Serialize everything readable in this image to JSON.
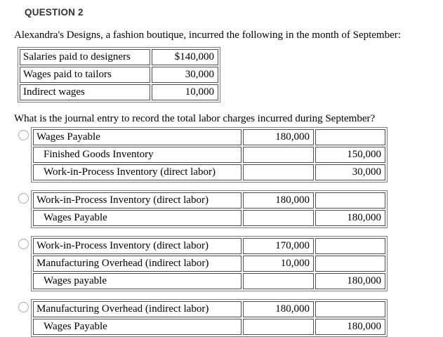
{
  "header": {
    "title": "QUESTION 2",
    "title_color": "#2f3337"
  },
  "intro": "Alexandra's Designs, a fashion boutique, incurred the following in the month of September:",
  "facts_table": {
    "rows": [
      {
        "label": "Salaries paid to designers",
        "amount": "$140,000"
      },
      {
        "label": "Wages paid to tailors",
        "amount": "30,000"
      },
      {
        "label": "Indirect wages",
        "amount": "10,000"
      }
    ]
  },
  "question": "What is the journal entry to record the total labor charges incurred during September?",
  "options": [
    {
      "selected": false,
      "rows": [
        {
          "account": "Wages Payable",
          "debit": "180,000",
          "credit": "",
          "indent": false
        },
        {
          "account": "Finished Goods Inventory",
          "debit": "",
          "credit": "150,000",
          "indent": true
        },
        {
          "account": "Work-in-Process Inventory (direct labor)",
          "debit": "",
          "credit": "30,000",
          "indent": true
        }
      ]
    },
    {
      "selected": false,
      "rows": [
        {
          "account": "Work-in-Process Inventory (direct labor)",
          "debit": "180,000",
          "credit": "",
          "indent": false
        },
        {
          "account": "Wages Payable",
          "debit": "",
          "credit": "180,000",
          "indent": true
        }
      ]
    },
    {
      "selected": false,
      "rows": [
        {
          "account": "Work-in-Process Inventory (direct labor)",
          "debit": "170,000",
          "credit": "",
          "indent": false
        },
        {
          "account": "Manufacturing Overhead (indirect labor)",
          "debit": "10,000",
          "credit": "",
          "indent": false
        },
        {
          "account": "Wages payable",
          "debit": "",
          "credit": "180,000",
          "indent": true
        }
      ]
    },
    {
      "selected": false,
      "rows": [
        {
          "account": "Manufacturing Overhead (indirect labor)",
          "debit": "180,000",
          "credit": "",
          "indent": false
        },
        {
          "account": "Wages Payable",
          "debit": "",
          "credit": "180,000",
          "indent": true
        }
      ]
    }
  ]
}
